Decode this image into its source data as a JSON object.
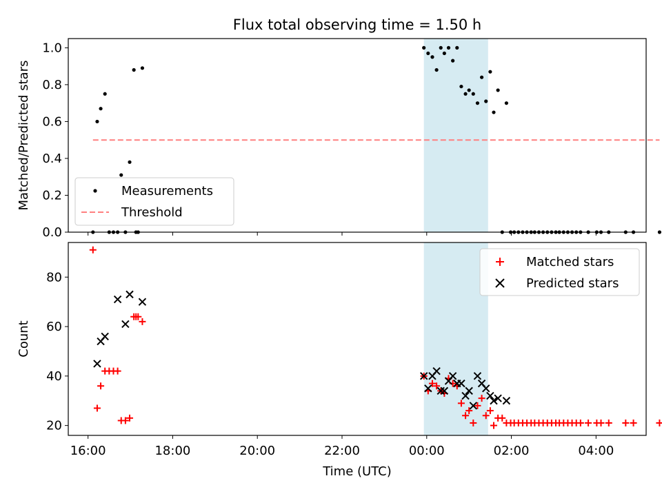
{
  "chart_data": [
    {
      "type": "scatter",
      "title": "Flux total observing time = 1.50 h",
      "xlabel": "",
      "ylabel": "Matched/Predicted stars",
      "xlim": [
        "15:32",
        "05:11"
      ],
      "ylim": [
        0,
        1.05
      ],
      "yticks": [
        "0.0",
        "0.2",
        "0.4",
        "0.6",
        "0.8",
        "1.0"
      ],
      "grid": false,
      "legend_position": "lower-left",
      "shaded_interval": {
        "start": "23:56",
        "end": "01:27",
        "color": "#add8e6"
      },
      "series": [
        {
          "name": "Measurements",
          "marker": "dot",
          "color": "#000000",
          "points": [
            [
              "16:07",
              0.0
            ],
            [
              "16:13",
              0.6
            ],
            [
              "16:18",
              0.67
            ],
            [
              "16:24",
              0.75
            ],
            [
              "16:30",
              0.0
            ],
            [
              "16:36",
              0.0
            ],
            [
              "16:42",
              0.0
            ],
            [
              "16:47",
              0.31
            ],
            [
              "16:53",
              0.0
            ],
            [
              "16:59",
              0.38
            ],
            [
              "17:05",
              0.88
            ],
            [
              "17:08",
              0.0
            ],
            [
              "17:11",
              0.0
            ],
            [
              "17:17",
              0.89
            ],
            [
              "23:56",
              1.0
            ],
            [
              "24:02",
              0.97
            ],
            [
              "24:08",
              0.95
            ],
            [
              "24:14",
              0.88
            ],
            [
              "24:20",
              1.0
            ],
            [
              "24:25",
              0.97
            ],
            [
              "24:31",
              1.0
            ],
            [
              "24:37",
              0.93
            ],
            [
              "24:43",
              1.0
            ],
            [
              "24:49",
              0.79
            ],
            [
              "24:55",
              0.75
            ],
            [
              "25:00",
              0.77
            ],
            [
              "25:06",
              0.75
            ],
            [
              "25:12",
              0.7
            ],
            [
              "25:18",
              0.84
            ],
            [
              "25:24",
              0.71
            ],
            [
              "25:30",
              0.87
            ],
            [
              "25:35",
              0.65
            ],
            [
              "25:41",
              0.77
            ],
            [
              "25:47",
              0.0
            ],
            [
              "25:53",
              0.7
            ],
            [
              "25:59",
              0.0
            ],
            [
              "26:04",
              0.0
            ],
            [
              "26:10",
              0.0
            ],
            [
              "26:16",
              0.0
            ],
            [
              "26:22",
              0.0
            ],
            [
              "26:28",
              0.0
            ],
            [
              "26:33",
              0.0
            ],
            [
              "26:39",
              0.0
            ],
            [
              "26:45",
              0.0
            ],
            [
              "26:51",
              0.0
            ],
            [
              "26:57",
              0.0
            ],
            [
              "27:03",
              0.0
            ],
            [
              "27:08",
              0.0
            ],
            [
              "27:14",
              0.0
            ],
            [
              "27:20",
              0.0
            ],
            [
              "27:26",
              0.0
            ],
            [
              "27:32",
              0.0
            ],
            [
              "27:38",
              0.0
            ],
            [
              "27:49",
              0.0
            ],
            [
              "28:01",
              0.0
            ],
            [
              "28:07",
              0.0
            ],
            [
              "28:18",
              0.0
            ],
            [
              "28:42",
              0.0
            ],
            [
              "28:53",
              0.0
            ],
            [
              "29:30",
              0.0
            ]
          ]
        },
        {
          "name": "Threshold",
          "line": "dashed",
          "color": "#ff7f7f",
          "points": [
            [
              "16:07",
              0.5
            ],
            [
              "29:30",
              0.5
            ]
          ]
        }
      ]
    },
    {
      "type": "scatter",
      "title": "",
      "xlabel": "Time (UTC)",
      "ylabel": "Count",
      "xlim": [
        "15:32",
        "05:11"
      ],
      "ylim": [
        16,
        94
      ],
      "yticks": [
        "20",
        "40",
        "60",
        "80"
      ],
      "xticks": [
        "16:00",
        "18:00",
        "20:00",
        "22:00",
        "00:00",
        "02:00",
        "04:00"
      ],
      "grid": false,
      "legend_position": "upper-right",
      "shaded_interval": {
        "start": "23:56",
        "end": "01:27",
        "color": "#add8e6"
      },
      "series": [
        {
          "name": "Matched stars",
          "marker": "plus",
          "color": "#ff0000",
          "points": [
            [
              "16:07",
              91
            ],
            [
              "16:13",
              27
            ],
            [
              "16:18",
              36
            ],
            [
              "16:24",
              42
            ],
            [
              "16:30",
              42
            ],
            [
              "16:36",
              42
            ],
            [
              "16:42",
              42
            ],
            [
              "16:47",
              22
            ],
            [
              "16:53",
              22
            ],
            [
              "16:59",
              23
            ],
            [
              "17:05",
              64
            ],
            [
              "17:08",
              64
            ],
            [
              "17:11",
              64
            ],
            [
              "17:17",
              62
            ],
            [
              "23:56",
              40
            ],
            [
              "24:02",
              34
            ],
            [
              "24:08",
              37
            ],
            [
              "24:14",
              36
            ],
            [
              "24:20",
              34
            ],
            [
              "24:25",
              33
            ],
            [
              "24:31",
              39
            ],
            [
              "24:37",
              37
            ],
            [
              "24:43",
              36
            ],
            [
              "24:49",
              29
            ],
            [
              "24:55",
              24
            ],
            [
              "25:00",
              26
            ],
            [
              "25:06",
              21
            ],
            [
              "25:12",
              28
            ],
            [
              "25:18",
              31
            ],
            [
              "25:24",
              24
            ],
            [
              "25:30",
              26
            ],
            [
              "25:35",
              20
            ],
            [
              "25:41",
              23
            ],
            [
              "25:47",
              23
            ],
            [
              "25:53",
              21
            ],
            [
              "25:59",
              21
            ],
            [
              "26:04",
              21
            ],
            [
              "26:10",
              21
            ],
            [
              "26:16",
              21
            ],
            [
              "26:22",
              21
            ],
            [
              "26:28",
              21
            ],
            [
              "26:33",
              21
            ],
            [
              "26:39",
              21
            ],
            [
              "26:45",
              21
            ],
            [
              "26:51",
              21
            ],
            [
              "26:57",
              21
            ],
            [
              "27:03",
              21
            ],
            [
              "27:08",
              21
            ],
            [
              "27:14",
              21
            ],
            [
              "27:20",
              21
            ],
            [
              "27:26",
              21
            ],
            [
              "27:32",
              21
            ],
            [
              "27:38",
              21
            ],
            [
              "27:49",
              21
            ],
            [
              "28:01",
              21
            ],
            [
              "28:07",
              21
            ],
            [
              "28:18",
              21
            ],
            [
              "28:42",
              21
            ],
            [
              "28:53",
              21
            ],
            [
              "29:30",
              21
            ]
          ]
        },
        {
          "name": "Predicted stars",
          "marker": "x",
          "color": "#000000",
          "points": [
            [
              "16:13",
              45
            ],
            [
              "16:18",
              54
            ],
            [
              "16:24",
              56
            ],
            [
              "16:42",
              71
            ],
            [
              "16:53",
              61
            ],
            [
              "16:59",
              73
            ],
            [
              "17:17",
              70
            ],
            [
              "23:56",
              40
            ],
            [
              "24:02",
              35
            ],
            [
              "24:08",
              40
            ],
            [
              "24:14",
              42
            ],
            [
              "24:20",
              34
            ],
            [
              "24:25",
              34
            ],
            [
              "24:31",
              38
            ],
            [
              "24:37",
              40
            ],
            [
              "24:43",
              37
            ],
            [
              "24:49",
              37
            ],
            [
              "24:55",
              32
            ],
            [
              "25:00",
              34
            ],
            [
              "25:06",
              28
            ],
            [
              "25:12",
              40
            ],
            [
              "25:18",
              37
            ],
            [
              "25:24",
              35
            ],
            [
              "25:30",
              32
            ],
            [
              "25:35",
              30
            ],
            [
              "25:41",
              31
            ],
            [
              "25:53",
              30
            ]
          ]
        }
      ]
    }
  ]
}
